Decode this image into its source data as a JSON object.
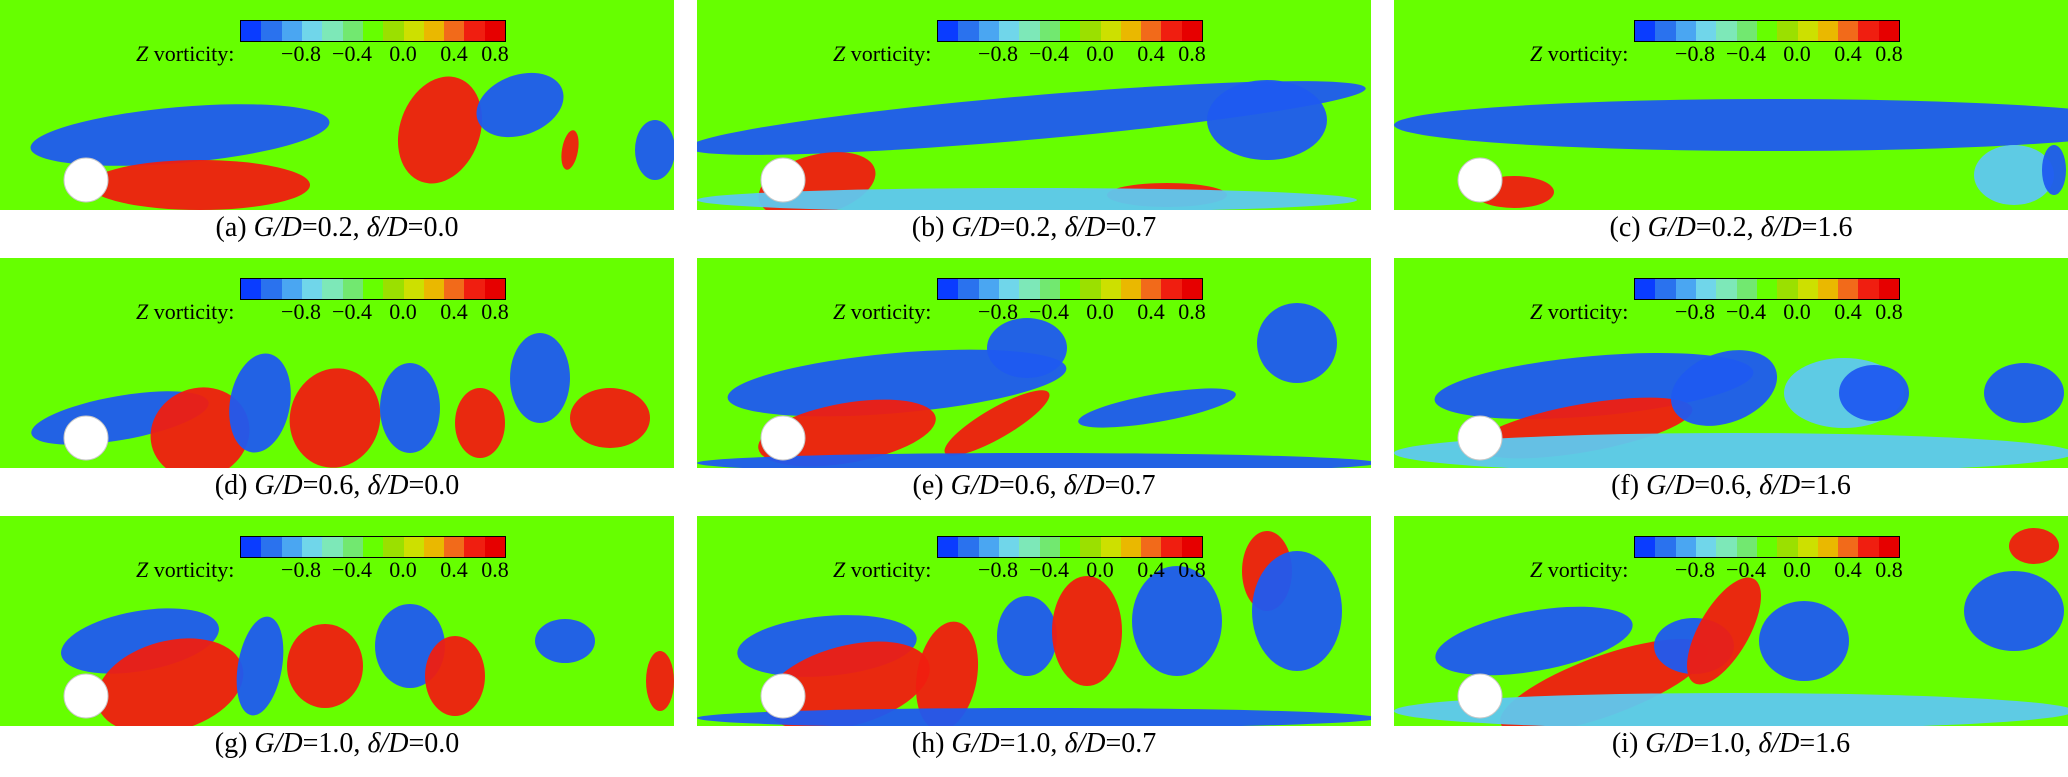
{
  "figure": {
    "colorbar": {
      "label_symbol": "Z",
      "label_text": " vorticity:",
      "ticks": [
        "−0.8",
        "−0.4",
        "0.0",
        "0.4",
        "0.8"
      ],
      "colors": [
        "#0a3cff",
        "#2a72ee",
        "#4aa6f2",
        "#70d6ea",
        "#7de8b8",
        "#72e870",
        "#66ff00",
        "#9be000",
        "#cde000",
        "#eab800",
        "#f26a1a",
        "#f01e10",
        "#e60000"
      ]
    },
    "panels": [
      {
        "letter": "(a)",
        "gd": "0.2",
        "dd": "0.0"
      },
      {
        "letter": "(b)",
        "gd": "0.2",
        "dd": "0.7"
      },
      {
        "letter": "(c)",
        "gd": "0.2",
        "dd": "1.6"
      },
      {
        "letter": "(d)",
        "gd": "0.6",
        "dd": "0.0"
      },
      {
        "letter": "(e)",
        "gd": "0.6",
        "dd": "0.7"
      },
      {
        "letter": "(f)",
        "gd": "0.6",
        "dd": "1.6"
      },
      {
        "letter": "(g)",
        "gd": "1.0",
        "dd": "0.0"
      },
      {
        "letter": "(h)",
        "gd": "1.0",
        "dd": "0.7"
      },
      {
        "letter": "(i)",
        "gd": "1.0",
        "dd": "1.6"
      }
    ],
    "caption_parts": {
      "gd_symbol": "G/D",
      "dd_symbol": "δ/D",
      "equals": "=",
      "separator": ", "
    },
    "colors": {
      "background_field": "#66ff00",
      "positive_vorticity": "#f01e10",
      "negative_vorticity": "#1f5af0",
      "weak_negative": "#5ec8f0",
      "cylinder": "#ffffff"
    }
  }
}
